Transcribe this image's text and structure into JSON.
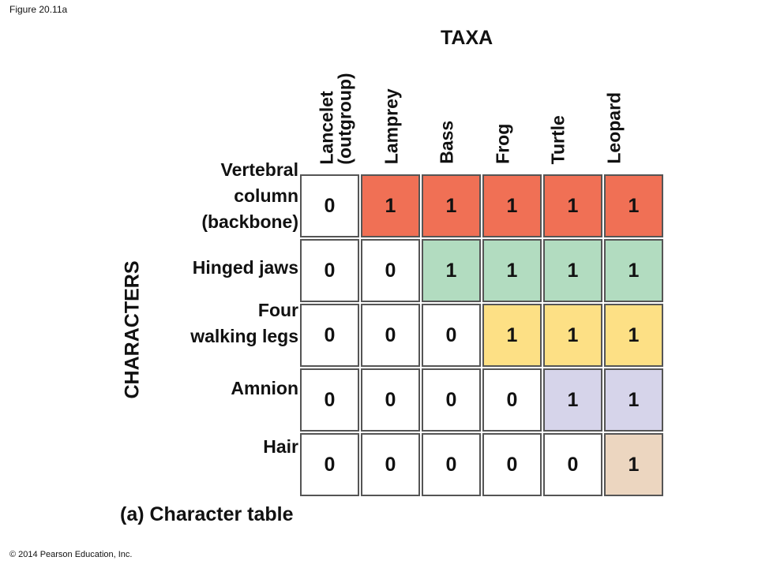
{
  "figure_label": "Figure 20.11a",
  "copyright": "© 2014 Pearson Education, Inc.",
  "taxa_title": "TAXA",
  "characters_title": "CHARACTERS",
  "caption": "(a) Character table",
  "taxa": [
    {
      "line1": "Lancelet",
      "line2": "(outgroup)"
    },
    {
      "line1": "Lamprey",
      "line2": ""
    },
    {
      "line1": "Bass",
      "line2": ""
    },
    {
      "line1": "Frog",
      "line2": ""
    },
    {
      "line1": "Turtle",
      "line2": ""
    },
    {
      "line1": "Leopard",
      "line2": ""
    }
  ],
  "characters": [
    {
      "lines": [
        "Vertebral",
        "column",
        "(backbone)"
      ],
      "values": [
        "0",
        "1",
        "1",
        "1",
        "1",
        "1"
      ],
      "color": "#f07055"
    },
    {
      "lines": [
        "Hinged jaws"
      ],
      "values": [
        "0",
        "0",
        "1",
        "1",
        "1",
        "1"
      ],
      "color": "#b2dcc0"
    },
    {
      "lines": [
        "Four",
        "walking legs"
      ],
      "values": [
        "0",
        "0",
        "0",
        "1",
        "1",
        "1"
      ],
      "color": "#fde085"
    },
    {
      "lines": [
        "Amnion"
      ],
      "values": [
        "0",
        "0",
        "0",
        "0",
        "1",
        "1"
      ],
      "color": "#d6d4ea"
    },
    {
      "lines": [
        "Hair"
      ],
      "values": [
        "0",
        "0",
        "0",
        "0",
        "0",
        "1"
      ],
      "color": "#ecd6c0"
    }
  ]
}
